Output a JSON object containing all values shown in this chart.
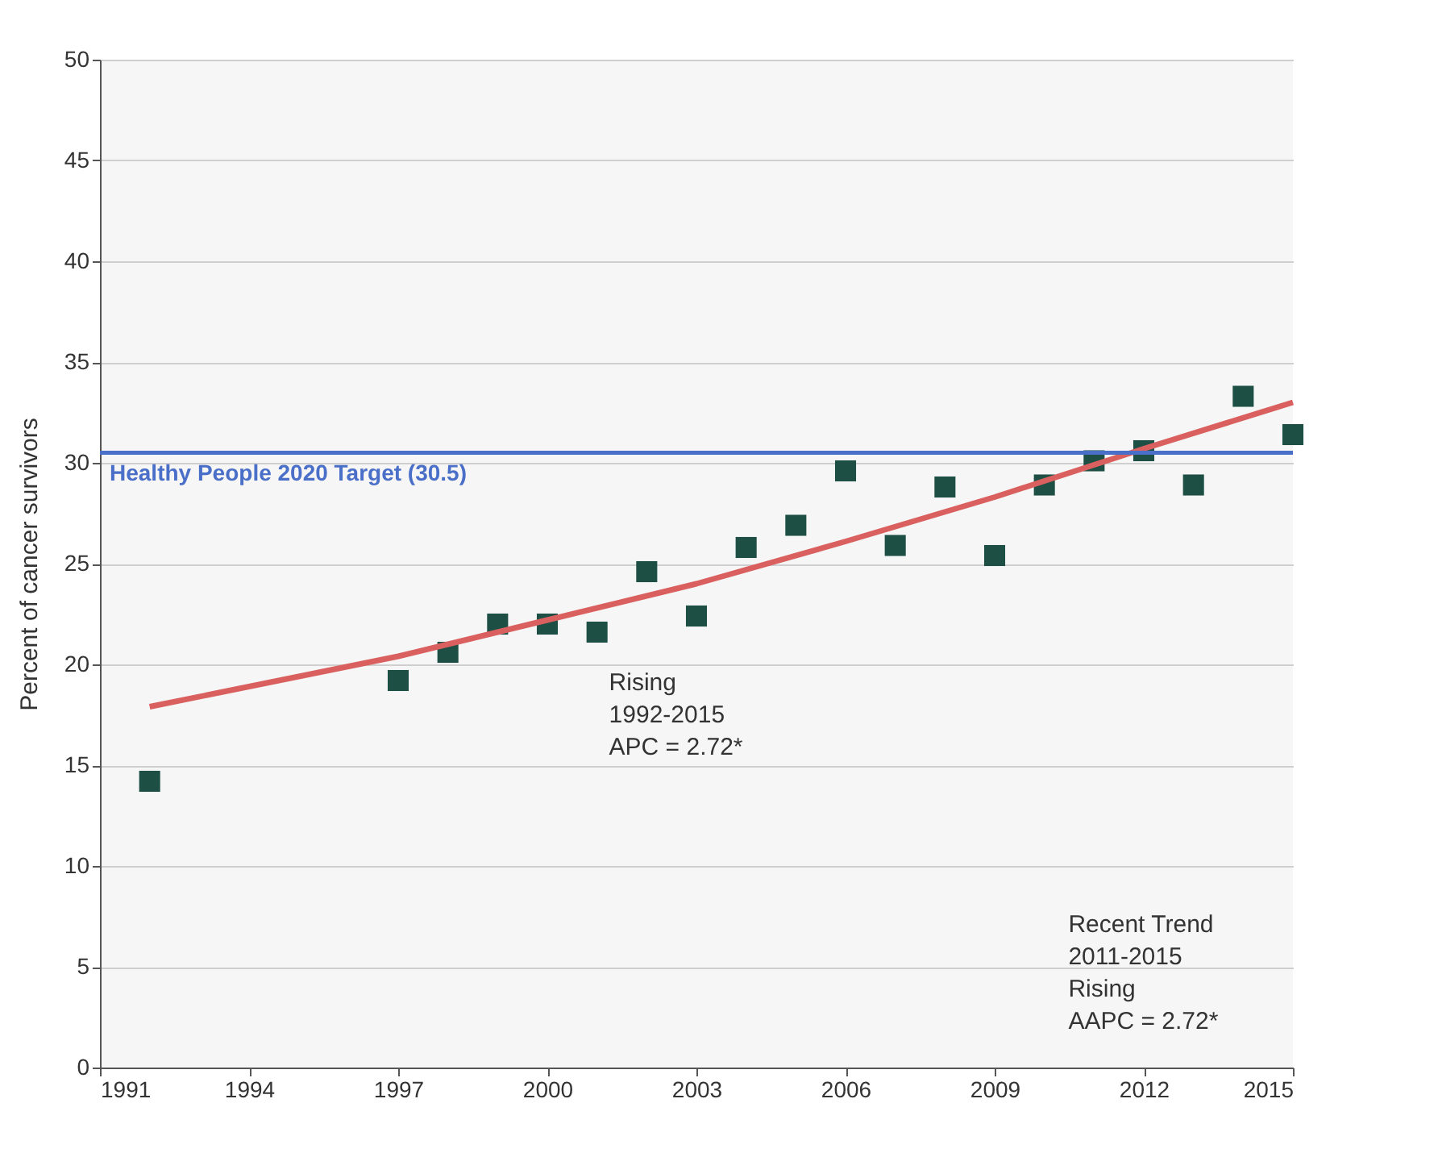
{
  "chart_data": {
    "type": "scatter",
    "ylabel": "Percent of cancer survivors",
    "x": [
      1992,
      1997,
      1998,
      1999,
      2000,
      2001,
      2002,
      2003,
      2004,
      2005,
      2006,
      2007,
      2008,
      2009,
      2010,
      2011,
      2012,
      2013,
      2014,
      2015
    ],
    "series": [
      {
        "color": "#1d4f45",
        "marker": "square",
        "values": [
          14.2,
          19.2,
          20.6,
          22.0,
          22.0,
          21.6,
          24.6,
          22.4,
          25.8,
          26.9,
          29.6,
          25.9,
          28.8,
          25.4,
          28.9,
          30.1,
          30.6,
          28.9,
          33.3,
          31.4
        ]
      },
      {
        "type": "line",
        "color": "#d9605f",
        "line_style": "solid",
        "x": [
          1992,
          1997,
          2000,
          2003,
          2006,
          2009,
          2012,
          2015
        ],
        "values": [
          17.9,
          20.4,
          22.2,
          24.0,
          26.1,
          28.3,
          30.7,
          33.0
        ]
      }
    ],
    "xlim": [
      1991,
      2015
    ],
    "xticks": [
      1991,
      1994,
      1997,
      2000,
      2003,
      2006,
      2009,
      2012,
      2015
    ],
    "ylim": [
      0,
      50
    ],
    "yticks": [
      0,
      5,
      10,
      15,
      20,
      25,
      30,
      35,
      40,
      45,
      50
    ],
    "grid": "y",
    "ref_lines": [
      {
        "axis": "y",
        "value": 30.5,
        "label": "Healthy People 2020 Target (30.5)",
        "color": "#4a6fc8",
        "line_style": "solid"
      }
    ],
    "annotations": [
      "Rising\n1992-2015\nAPC =  2.72*",
      "Recent Trend\n2011-2015\nRising\nAAPC =  2.72*"
    ]
  }
}
